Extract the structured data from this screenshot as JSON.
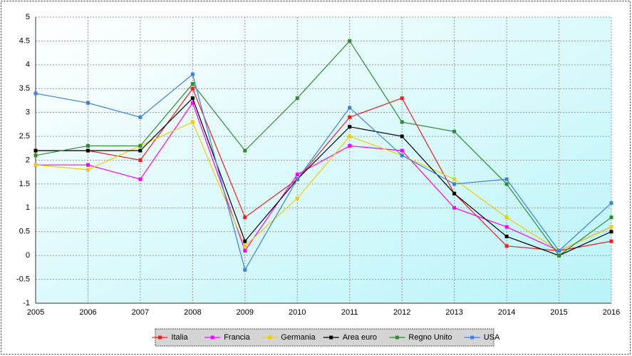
{
  "chart_data": {
    "type": "line",
    "x": [
      2005,
      2006,
      2007,
      2008,
      2009,
      2010,
      2011,
      2012,
      2013,
      2014,
      2015,
      2016
    ],
    "xlim": [
      2005,
      2016
    ],
    "xticks": [
      2005,
      2006,
      2007,
      2008,
      2009,
      2010,
      2011,
      2012,
      2013,
      2014,
      2015,
      2016
    ],
    "ylim": [
      -1,
      5
    ],
    "yticks": [
      -1,
      -0.5,
      0,
      0.5,
      1,
      1.5,
      2,
      2.5,
      3,
      3.5,
      4,
      4.5,
      5
    ],
    "grid": true,
    "legend": "bottom",
    "series": [
      {
        "name": "Italia",
        "color": "#e8201e",
        "values": [
          2.2,
          2.2,
          2.0,
          3.5,
          0.8,
          1.6,
          2.9,
          3.3,
          1.3,
          0.2,
          0.1,
          0.3
        ]
      },
      {
        "name": "Francia",
        "color": "#ff00ff",
        "values": [
          1.9,
          1.9,
          1.6,
          3.2,
          0.1,
          1.7,
          2.3,
          2.2,
          1.0,
          0.6,
          0.1,
          0.6
        ]
      },
      {
        "name": "Germania",
        "color": "#f2cc00",
        "values": [
          1.9,
          1.8,
          2.3,
          2.8,
          0.2,
          1.2,
          2.5,
          2.1,
          1.6,
          0.8,
          0.1,
          0.6
        ]
      },
      {
        "name": "Area euro",
        "color": "#000000",
        "values": [
          2.2,
          2.2,
          2.2,
          3.3,
          0.3,
          1.6,
          2.7,
          2.5,
          1.3,
          0.4,
          0.0,
          0.5
        ]
      },
      {
        "name": "Regno Unito",
        "color": "#2e8b2e",
        "values": [
          2.1,
          2.3,
          2.3,
          3.6,
          2.2,
          3.3,
          4.5,
          2.8,
          2.6,
          1.5,
          0.0,
          0.8
        ]
      },
      {
        "name": "USA",
        "color": "#3f7fe0",
        "values": [
          3.4,
          3.2,
          2.9,
          3.8,
          -0.3,
          1.6,
          3.1,
          2.1,
          1.5,
          1.6,
          0.1,
          1.1
        ]
      }
    ]
  }
}
